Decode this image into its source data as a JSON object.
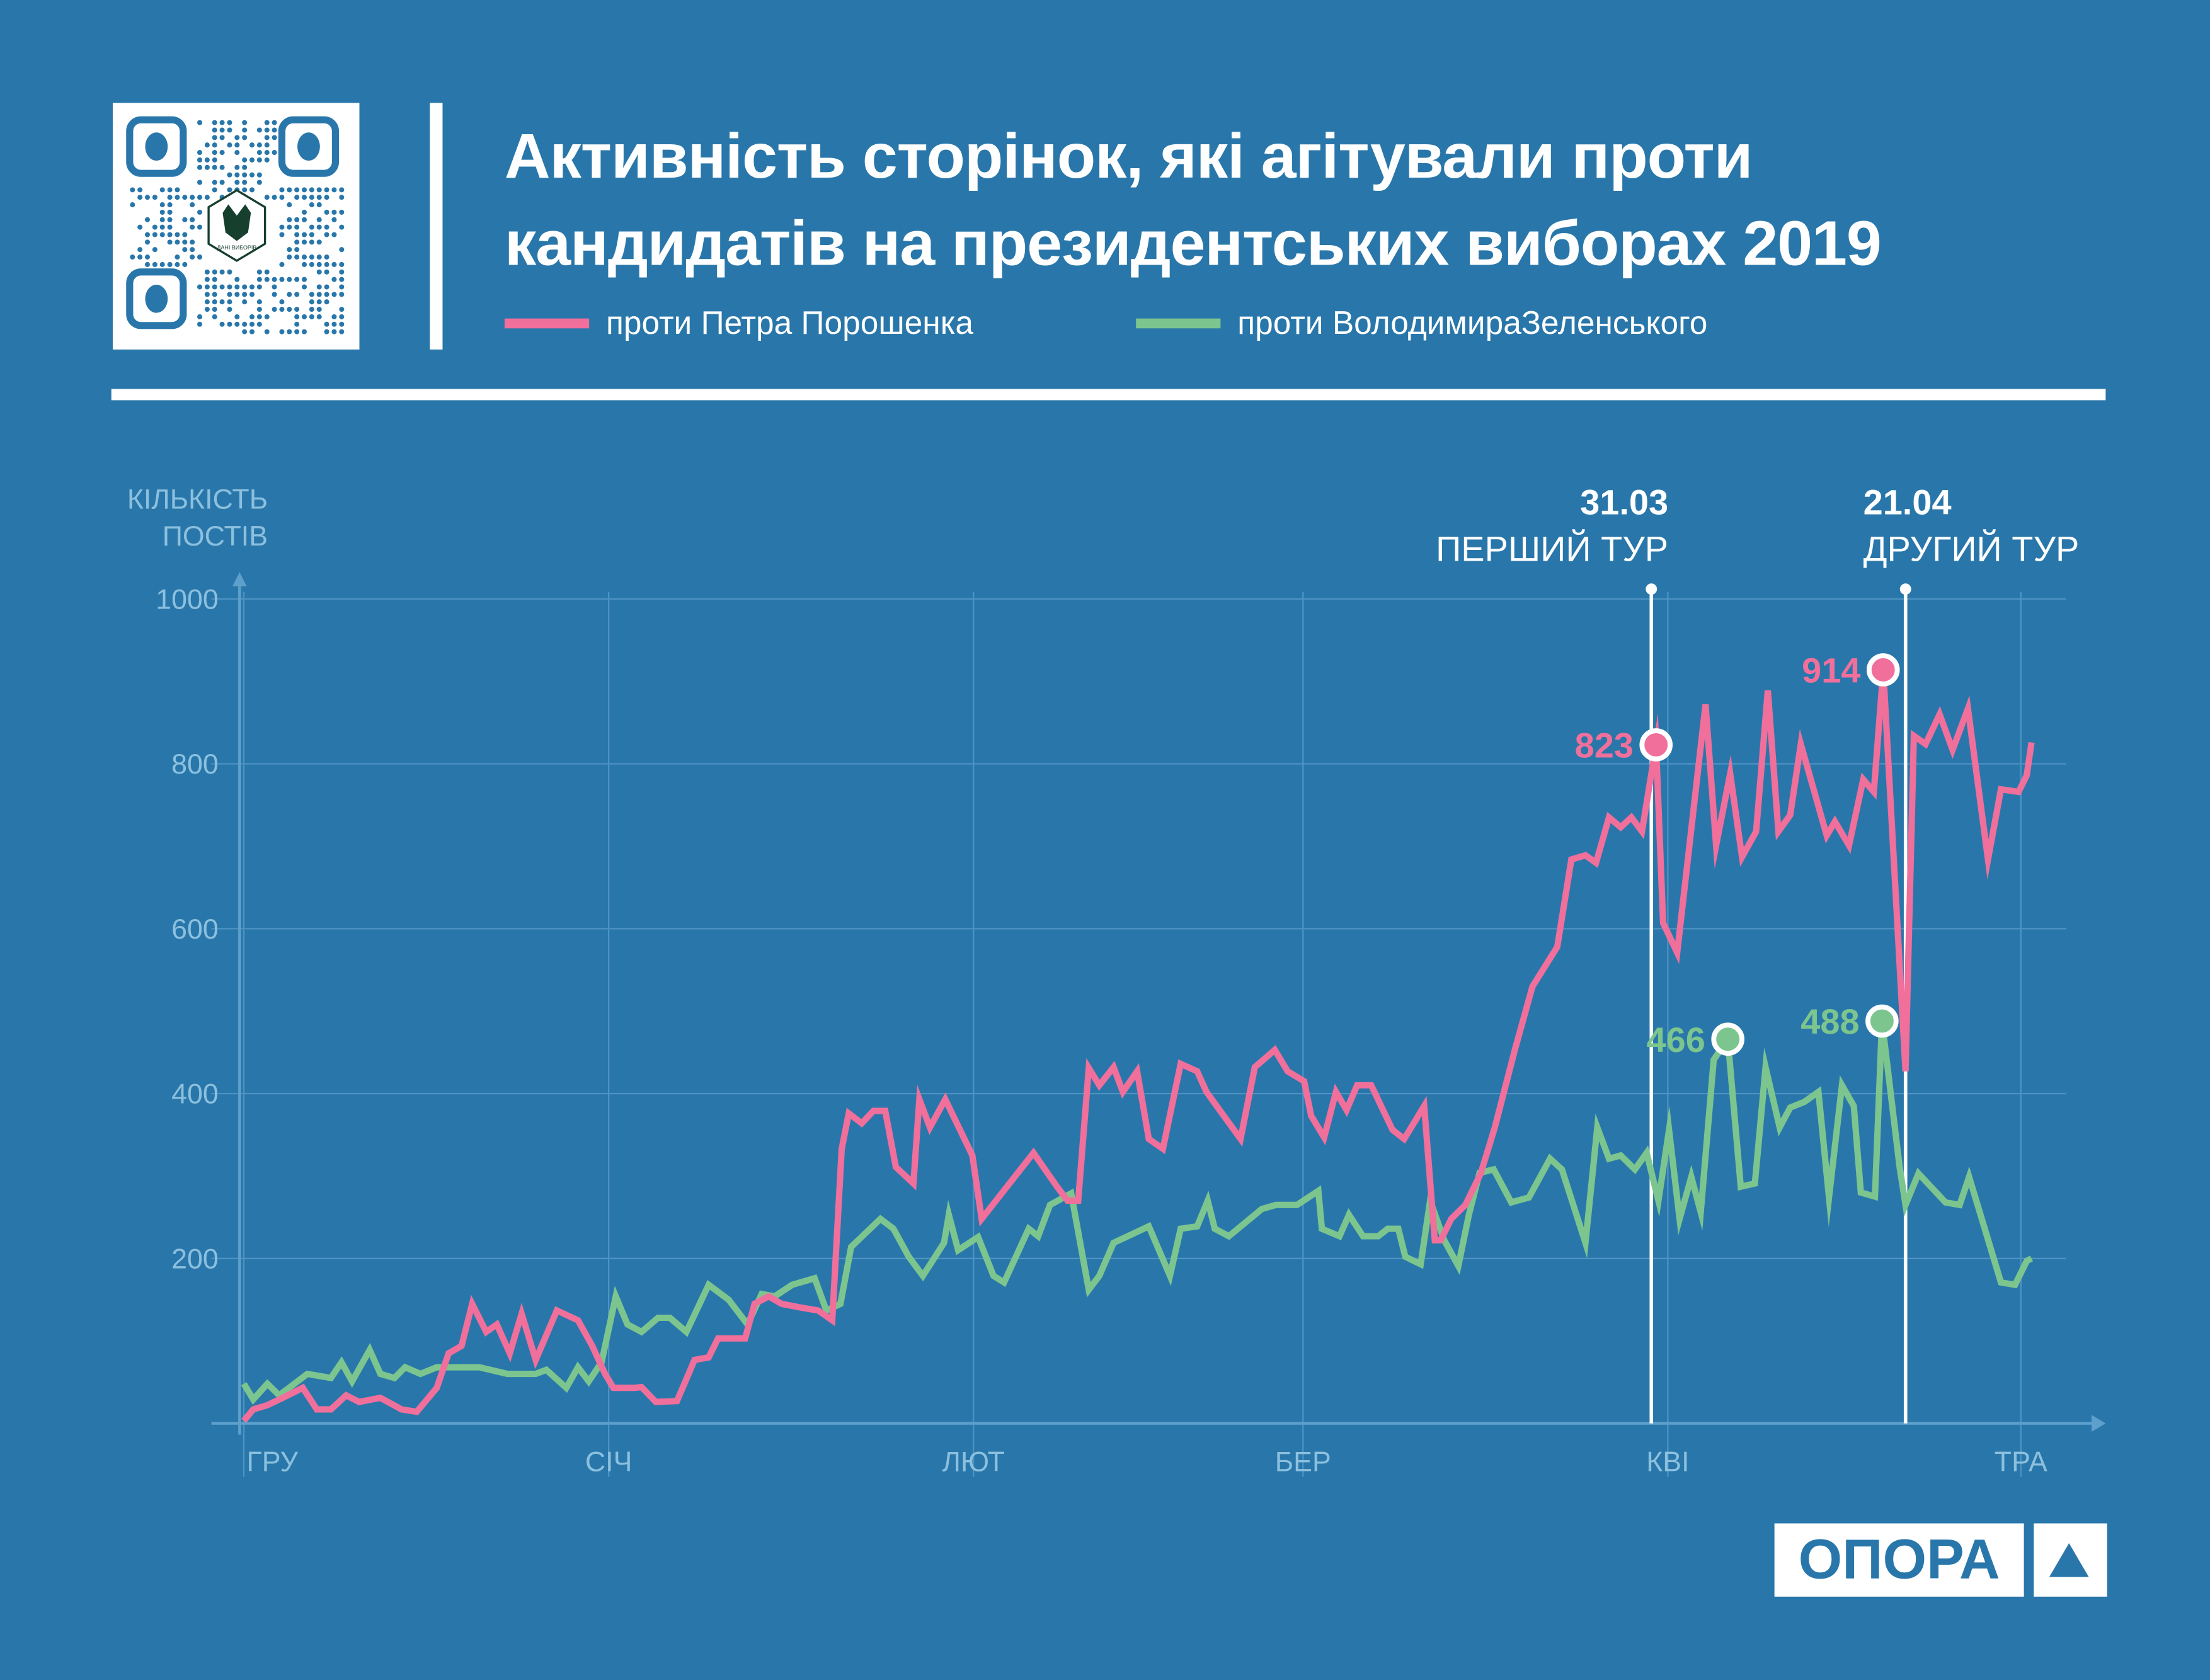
{
  "title_line1": "Активність сторінок, які агітували проти",
  "title_line2": "кандидатів на президентських виборах 2019",
  "qr_logo_text": "ДАНІ ВИБОРІВ",
  "brand_logo": "ОПОРА",
  "colors": {
    "background": "#2977aa",
    "poroshenko": "#f06f9b",
    "zelensky": "#7cc58f",
    "grid": "#4f93c4"
  },
  "chart_data": {
    "type": "line",
    "title": "Активність сторінок, які агітували проти кандидатів на президентських виборах 2019",
    "ylabel_line1": "КІЛЬКІСТЬ",
    "ylabel_line2": "ПОСТІВ",
    "xlabel": "",
    "x_unit": "days since 1 Dec 2018",
    "xlim": [
      0,
      152
    ],
    "ylim": [
      0,
      1000
    ],
    "grid": true,
    "yticks": [
      200,
      400,
      600,
      800,
      1000
    ],
    "xticks": [
      {
        "day": 0,
        "label": "ГРУ"
      },
      {
        "day": 31,
        "label": "СІЧ"
      },
      {
        "day": 62,
        "label": "ЛЮТ"
      },
      {
        "day": 90,
        "label": "БЕР"
      },
      {
        "day": 121,
        "label": "КВІ"
      },
      {
        "day": 151,
        "label": "ТРА"
      }
    ],
    "legend_position": "top-left",
    "events": [
      {
        "day": 119.6,
        "date": "31.03",
        "label": "ПЕРШИЙ ТУР"
      },
      {
        "day": 141.2,
        "date": "21.04",
        "label": "ДРУГИЙ ТУР"
      }
    ],
    "series": [
      {
        "name": "проти Петра Порошенка",
        "color": "#f06f9b",
        "x": [
          0,
          0.8,
          2,
          3.3,
          5,
          6.2,
          7.4,
          8.7,
          9.8,
          11.6,
          13.4,
          14.7,
          16.4,
          17.4,
          18.5,
          19.4,
          20.6,
          21.5,
          22.6,
          23.6,
          24.8,
          26.6,
          28.4,
          29.6,
          30.7,
          31.4,
          33.2,
          33.8,
          35,
          36.8,
          38.3,
          39.5,
          40.3,
          42.6,
          43.4,
          44.6,
          45.7,
          47.5,
          48.8,
          50,
          50.8,
          51.4,
          52.5,
          53.5,
          54.5,
          55.4,
          56.9,
          57.4,
          58.3,
          59.6,
          61.9,
          62.7,
          67.1,
          69.1,
          70,
          70.9,
          71.8,
          72.7,
          73.9,
          74.7,
          75.9,
          76.9,
          78.1,
          79.6,
          81,
          81.8,
          84.7,
          85.9,
          87.6,
          88.7,
          90.1,
          90.7,
          91.8,
          92.8,
          93.7,
          94.6,
          95.8,
          97.6,
          98.6,
          100.3,
          101.2,
          101.7,
          102.6,
          103.8,
          105.1,
          106.3,
          108,
          109.5,
          111.6,
          112.8,
          114,
          114.9,
          116,
          117,
          117.9,
          118.8,
          120,
          120.6,
          121.8,
          124.2,
          125.1,
          126.3,
          127.3,
          128.5,
          129.5,
          130.4,
          131.4,
          132.3,
          134.5,
          135.2,
          136.4,
          137.6,
          138.5,
          139.3,
          141.2,
          141.9,
          142.9,
          144.1,
          145.2,
          146.5,
          148.2,
          149.3,
          150.8,
          151.5,
          151.9
        ],
        "y": [
          3,
          17,
          22,
          31,
          43,
          17,
          17,
          34,
          26,
          31,
          17,
          14,
          43,
          85,
          94,
          145,
          111,
          120,
          85,
          133,
          77,
          137,
          125,
          94,
          60,
          43,
          43,
          44,
          26,
          27,
          77,
          80,
          103,
          103,
          145,
          154,
          145,
          140,
          137,
          125,
          333,
          376,
          364,
          379,
          379,
          311,
          291,
          393,
          359,
          393,
          325,
          248,
          328,
          287,
          270,
          270,
          431,
          410,
          432,
          402,
          427,
          345,
          333,
          436,
          427,
          402,
          345,
          432,
          453,
          427,
          415,
          373,
          347,
          402,
          380,
          410,
          410,
          356,
          345,
          385,
          222,
          222,
          248,
          265,
          303,
          359,
          453,
          530,
          578,
          684,
          689,
          680,
          735,
          723,
          735,
          718,
          823,
          607,
          571,
          872,
          701,
          788,
          687,
          718,
          889,
          718,
          738,
          824,
          713,
          730,
          701,
          781,
          766,
          914,
          427,
          834,
          824,
          860,
          817,
          867,
          684,
          769,
          766,
          786,
          826
        ]
      },
      {
        "name": "проти ВолодимираЗеленського",
        "color": "#7cc58f",
        "x": [
          0,
          0.8,
          2,
          3,
          5.4,
          7.4,
          8.3,
          9.2,
          10.7,
          11.6,
          12.8,
          13.7,
          15,
          16.4,
          20,
          22.4,
          24.8,
          25.7,
          27.4,
          28.4,
          29.3,
          30.4,
          31.6,
          32.6,
          33.8,
          35.2,
          36.2,
          37.6,
          39.5,
          41.2,
          42.8,
          44,
          45.1,
          46.6,
          48.5,
          49.5,
          50.7,
          51.6,
          54.1,
          55.2,
          56.5,
          57.7,
          59.5,
          59.9,
          60.7,
          62.4,
          63.7,
          64.6,
          66.7,
          67.5,
          68.5,
          70.3,
          71.8,
          72.7,
          73.9,
          75.7,
          76.9,
          78.7,
          79.6,
          81,
          81.9,
          82.5,
          83.7,
          86.5,
          87.7,
          89.5,
          91.3,
          91.6,
          93.1,
          93.9,
          95.1,
          96.4,
          97.2,
          98.1,
          98.7,
          100,
          100.8,
          102,
          103.2,
          104.1,
          105,
          106.2,
          107.7,
          109.2,
          111,
          112,
          114,
          115,
          116,
          117,
          118.2,
          119.2,
          120.2,
          121.1,
          122,
          123,
          123.8,
          124.9,
          126.1,
          127.2,
          128.4,
          129.3,
          130.5,
          131.4,
          132.6,
          133.8,
          134.7,
          135.8,
          136.8,
          137.4,
          138.6,
          139.2,
          140.7,
          141.2,
          142.3,
          144.6,
          145.8,
          146.6,
          149.3,
          150.5,
          151.5,
          151.9
        ],
        "y": [
          48,
          29,
          48,
          34,
          60,
          55,
          74,
          51,
          89,
          60,
          55,
          68,
          60,
          68,
          68,
          60,
          60,
          65,
          43,
          68,
          51,
          74,
          154,
          120,
          111,
          128,
          128,
          111,
          168,
          150,
          120,
          157,
          154,
          168,
          176,
          137,
          145,
          214,
          248,
          236,
          202,
          179,
          219,
          253,
          210,
          226,
          179,
          171,
          236,
          227,
          265,
          279,
          162,
          179,
          219,
          231,
          239,
          179,
          236,
          239,
          270,
          236,
          227,
          260,
          265,
          265,
          282,
          236,
          227,
          253,
          227,
          227,
          236,
          236,
          202,
          193,
          270,
          222,
          191,
          253,
          304,
          308,
          268,
          274,
          321,
          308,
          219,
          359,
          321,
          325,
          308,
          328,
          270,
          356,
          248,
          299,
          256,
          441,
          466,
          287,
          291,
          432,
          359,
          383,
          390,
          402,
          274,
          410,
          385,
          280,
          275,
          488,
          311,
          265,
          303,
          268,
          265,
          299,
          171,
          168,
          197,
          200
        ]
      }
    ],
    "annotations": [
      {
        "series": 0,
        "day": 120,
        "value": 823,
        "label": "823"
      },
      {
        "series": 0,
        "day": 139.3,
        "value": 914,
        "label": "914"
      },
      {
        "series": 1,
        "day": 126.1,
        "value": 466,
        "label": "466"
      },
      {
        "series": 1,
        "day": 139.2,
        "value": 488,
        "label": "488"
      }
    ]
  }
}
